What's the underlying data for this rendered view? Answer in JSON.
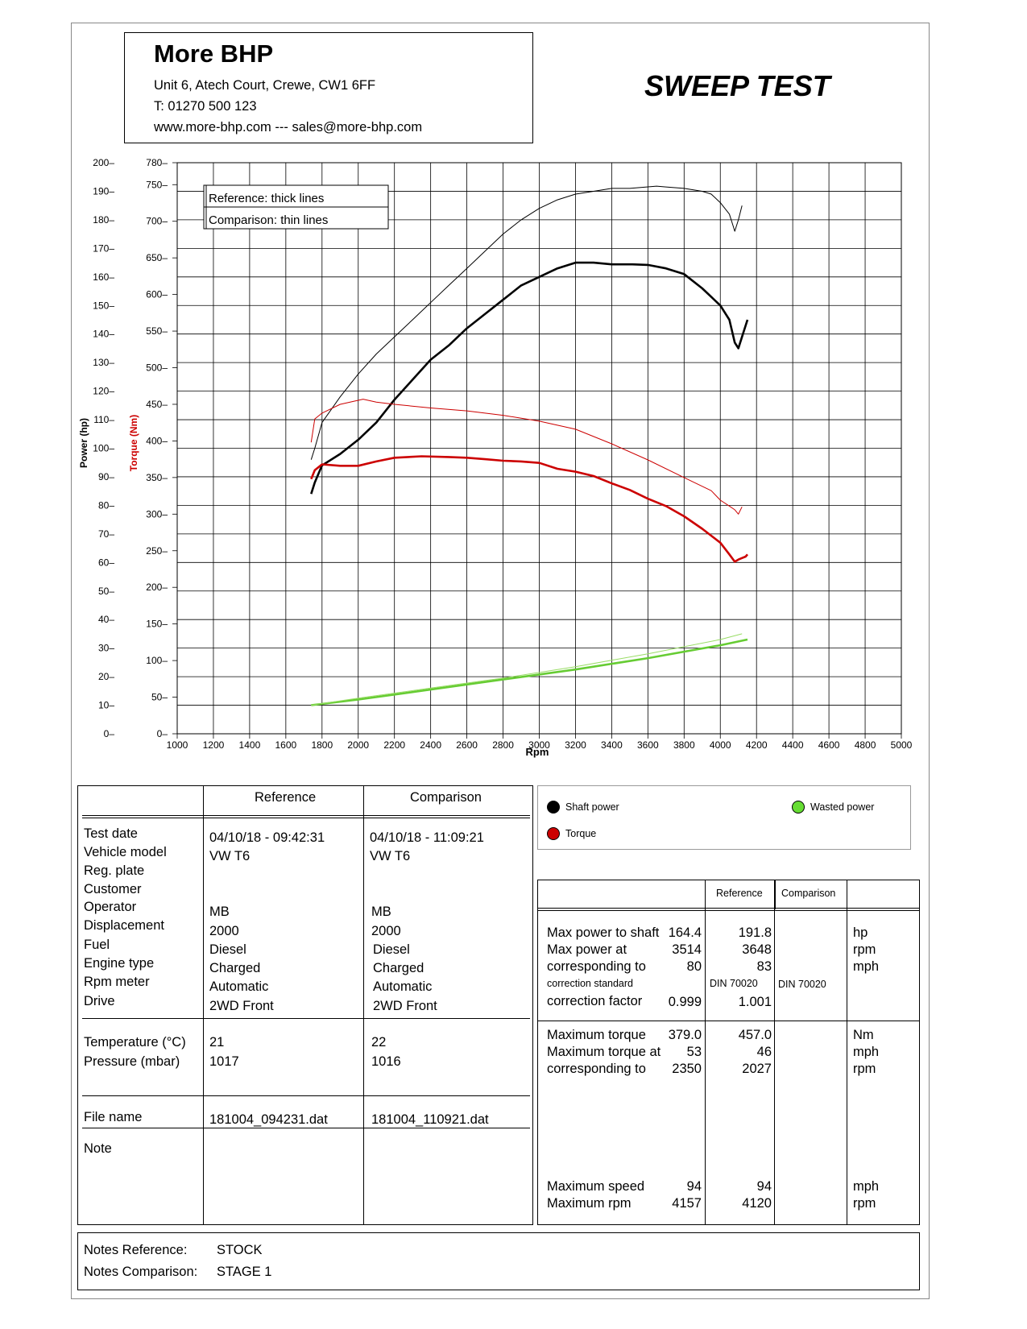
{
  "header": {
    "company": "More BHP",
    "address": "Unit 6, Atech Court, Crewe, CW1 6FF",
    "phone": "T: 01270 500 123",
    "web": "www.more-bhp.com --- sales@more-bhp.com",
    "title": "SWEEP TEST"
  },
  "chart_data": {
    "type": "line",
    "xlabel": "Rpm",
    "ylabel_power": "Power (hp)",
    "ylabel_torque": "Torque (Nm)",
    "xlim": [
      1000,
      5000
    ],
    "ylim_power": [
      0,
      200
    ],
    "ylim_torque": [
      0,
      780
    ],
    "x_ticks": [
      "1000",
      "1200",
      "1400",
      "1600",
      "1800",
      "2000",
      "2200",
      "2400",
      "2600",
      "2800",
      "3000",
      "3200",
      "3400",
      "3600",
      "3800",
      "4000",
      "4200",
      "4400",
      "4600",
      "4800",
      "5000"
    ],
    "power_ticks": [
      "0",
      "10",
      "20",
      "30",
      "40",
      "50",
      "60",
      "70",
      "80",
      "90",
      "100",
      "110",
      "120",
      "130",
      "140",
      "150",
      "160",
      "170",
      "180",
      "190",
      "200"
    ],
    "torque_ticks": [
      "0",
      "50",
      "100",
      "150",
      "200",
      "250",
      "300",
      "350",
      "400",
      "450",
      "500",
      "550",
      "600",
      "650",
      "700",
      "750",
      "780"
    ],
    "grid": true,
    "legend_box": [
      "Reference: thick lines",
      "Comparison: thin lines"
    ],
    "series": [
      {
        "name": "Shaft power",
        "run": "Reference",
        "axis": "power",
        "color": "#000000",
        "width": "thick",
        "x": [
          1740,
          1760,
          1800,
          1900,
          2000,
          2100,
          2200,
          2300,
          2400,
          2500,
          2600,
          2700,
          2800,
          2900,
          3000,
          3100,
          3200,
          3300,
          3400,
          3514,
          3600,
          3700,
          3800,
          3900,
          3950,
          4000,
          4050,
          4080,
          4100,
          4120,
          4140,
          4150
        ],
        "y": [
          84,
          88,
          94,
          98,
          103,
          109,
          117,
          124,
          131,
          136,
          142,
          147,
          152,
          157,
          160,
          163,
          165,
          165,
          164.4,
          164.4,
          164.2,
          163,
          161,
          156,
          153,
          150,
          145,
          137,
          135,
          139,
          143,
          145
        ]
      },
      {
        "name": "Torque",
        "run": "Reference",
        "axis": "torque",
        "color": "#cc0000",
        "width": "thick",
        "x": [
          1740,
          1760,
          1800,
          1900,
          2000,
          2100,
          2200,
          2350,
          2500,
          2600,
          2700,
          2800,
          2900,
          3000,
          3100,
          3200,
          3300,
          3400,
          3500,
          3600,
          3700,
          3800,
          3900,
          4000,
          4050,
          4080,
          4100,
          4120,
          4140,
          4150
        ],
        "y": [
          348,
          360,
          368,
          366,
          366,
          372,
          377,
          379,
          378,
          377,
          375,
          373,
          372,
          370,
          362,
          358,
          352,
          342,
          333,
          321,
          311,
          297,
          280,
          261,
          245,
          235,
          238,
          240,
          242,
          245
        ]
      },
      {
        "name": "Wasted power",
        "run": "Reference",
        "axis": "power",
        "color": "#66cc33",
        "width": "thick",
        "x": [
          1740,
          2000,
          2400,
          2800,
          3200,
          3600,
          4000,
          4150
        ],
        "y": [
          10,
          12,
          15.5,
          19,
          22.5,
          26.5,
          31,
          33
        ]
      },
      {
        "name": "Shaft power",
        "run": "Comparison",
        "axis": "power",
        "color": "#000000",
        "width": "thin",
        "x": [
          1740,
          1760,
          1800,
          1900,
          2000,
          2100,
          2200,
          2300,
          2400,
          2500,
          2600,
          2700,
          2800,
          2900,
          3000,
          3100,
          3200,
          3300,
          3400,
          3500,
          3648,
          3700,
          3800,
          3900,
          3950,
          4000,
          4050,
          4070,
          4080,
          4100,
          4120
        ],
        "y": [
          96,
          100,
          109,
          118,
          126,
          133,
          139,
          145,
          151,
          157,
          163,
          169,
          175,
          180,
          184,
          187,
          189,
          190,
          191,
          191,
          191.8,
          191.5,
          191,
          190,
          189,
          186,
          182,
          178,
          176,
          180,
          185
        ]
      },
      {
        "name": "Torque",
        "run": "Comparison",
        "axis": "torque",
        "color": "#cc0000",
        "width": "thin",
        "x": [
          1740,
          1760,
          1800,
          1900,
          2027,
          2100,
          2200,
          2400,
          2600,
          2800,
          3000,
          3200,
          3400,
          3600,
          3800,
          3950,
          4000,
          4050,
          4080,
          4100,
          4120
        ],
        "y": [
          398,
          430,
          438,
          450,
          457,
          453,
          450,
          445,
          441,
          435,
          427,
          416,
          396,
          374,
          350,
          332,
          319,
          311,
          306,
          300,
          310
        ]
      },
      {
        "name": "Wasted power",
        "run": "Comparison",
        "axis": "power",
        "color": "#99dd66",
        "width": "thin",
        "x": [
          1740,
          2000,
          2400,
          2800,
          3200,
          3600,
          4000,
          4120
        ],
        "y": [
          10,
          12.5,
          16,
          19.5,
          23.5,
          28,
          33,
          35
        ]
      }
    ]
  },
  "legend": {
    "shaft_power": "Shaft power",
    "torque": "Torque",
    "wasted_power": "Wasted power",
    "colors": {
      "shaft_power": "#000000",
      "torque": "#cc0000",
      "wasted_power": "#66cc33"
    }
  },
  "info_table": {
    "col_reference": "Reference",
    "col_comparison": "Comparison",
    "labels": [
      "Test date",
      "Vehicle model",
      "Reg. plate",
      "Customer",
      "Operator",
      "Displacement",
      "Fuel",
      "Engine type",
      "Rpm meter",
      "Drive"
    ],
    "reference": {
      "test_date": "04/10/18 - 09:42:31",
      "vehicle_model": "VW T6",
      "operator": "MB",
      "displacement": "2000",
      "fuel": "Diesel",
      "engine_type": "Charged",
      "rpm_meter": "Automatic",
      "drive": "2WD Front"
    },
    "comparison": {
      "test_date": "04/10/18 - 11:09:21",
      "vehicle_model": "VW T6",
      "operator": "MB",
      "displacement": "2000",
      "fuel": "Diesel",
      "engine_type": "Charged",
      "rpm_meter": "Automatic",
      "drive": "2WD Front"
    },
    "env_labels": [
      "Temperature (°C)",
      "Pressure (mbar)"
    ],
    "env_reference": [
      "21",
      "1017"
    ],
    "env_comparison": [
      "22",
      "1016"
    ],
    "file_label": "File name",
    "file_reference": "181004_094231.dat",
    "file_comparison": "181004_110921.dat",
    "note_label": "Note"
  },
  "results_table": {
    "col_reference": "Reference",
    "col_comparison": "Comparison",
    "power": {
      "labels": [
        "Max power to shaft",
        "Max power at",
        "corresponding to"
      ],
      "reference": [
        "164.4",
        "3514",
        "80"
      ],
      "comparison": [
        "191.8",
        "3648",
        "83"
      ],
      "units": [
        "hp",
        "rpm",
        "mph"
      ],
      "std_label": "correction standard",
      "std_reference": "DIN 70020",
      "std_comparison": "DIN 70020",
      "factor_label": "correction factor",
      "factor_reference": "0.999",
      "factor_comparison": "1.001"
    },
    "torque": {
      "labels": [
        "Maximum torque",
        "Maximum torque at",
        "corresponding to"
      ],
      "reference": [
        "379.0",
        "53",
        "2350"
      ],
      "comparison": [
        "457.0",
        "46",
        "2027"
      ],
      "units": [
        "Nm",
        "mph",
        "rpm"
      ]
    },
    "speed": {
      "labels": [
        "Maximum speed",
        "Maximum rpm"
      ],
      "reference": [
        "94",
        "4157"
      ],
      "comparison": [
        "94",
        "4120"
      ],
      "units": [
        "mph",
        "rpm"
      ]
    }
  },
  "notes": {
    "reference_label": "Notes Reference:",
    "reference_value": "STOCK",
    "comparison_label": "Notes Comparison:",
    "comparison_value": "STAGE 1"
  }
}
